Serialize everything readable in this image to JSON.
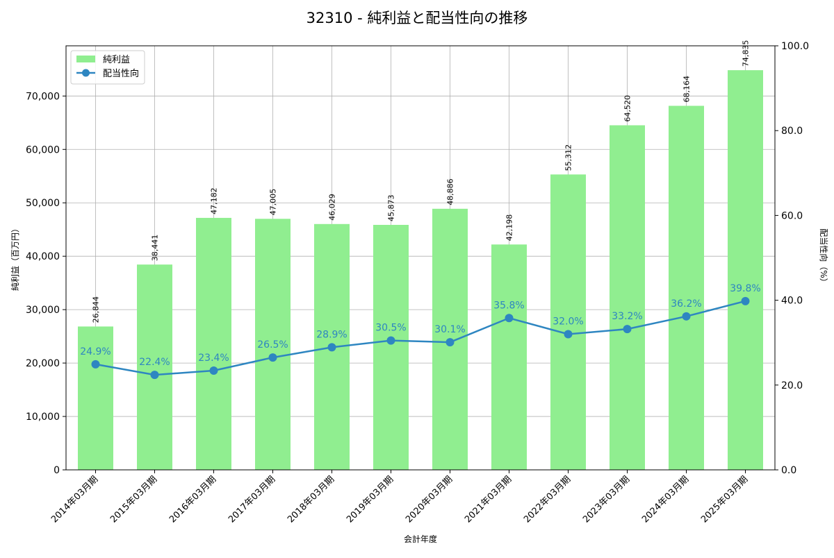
{
  "chart_data": {
    "type": "bar+line",
    "title": "32310 - 純利益と配当性向の推移",
    "xlabel": "会計年度",
    "ylabel_left": "純利益（百万円）",
    "ylabel_right": "配当性向（%）",
    "ylim_left": [
      0,
      79400
    ],
    "ylim_right": [
      0,
      100
    ],
    "yticks_left": [
      0,
      10000,
      20000,
      30000,
      40000,
      50000,
      60000,
      70000
    ],
    "yticks_left_labels": [
      "0",
      "10,000",
      "20,000",
      "30,000",
      "40,000",
      "50,000",
      "60,000",
      "70,000"
    ],
    "yticks_right": [
      0,
      20,
      40,
      60,
      80,
      100
    ],
    "yticks_right_labels": [
      "0.0",
      "20.0",
      "40.0",
      "60.0",
      "80.0",
      "100.0"
    ],
    "grid": true,
    "legend_position": "top-left",
    "categories": [
      "2014年03月期",
      "2015年03月期",
      "2016年03月期",
      "2017年03月期",
      "2018年03月期",
      "2019年03月期",
      "2020年03月期",
      "2021年03月期",
      "2022年03月期",
      "2023年03月期",
      "2024年03月期",
      "2025年03月期"
    ],
    "series": [
      {
        "name": "純利益",
        "type": "bar",
        "axis": "left",
        "color": "#90ee90",
        "values": [
          26844,
          38441,
          47182,
          47005,
          46029,
          45873,
          48886,
          42198,
          55312,
          64520,
          68164,
          74835
        ],
        "labels": [
          "26,844",
          "38,441",
          "47,182",
          "47,005",
          "46,029",
          "45,873",
          "48,886",
          "42,198",
          "55,312",
          "64,520",
          "68,164",
          "74,835"
        ]
      },
      {
        "name": "配当性向",
        "type": "line",
        "axis": "right",
        "color": "#2e86c1",
        "values": [
          24.9,
          22.4,
          23.4,
          26.5,
          28.9,
          30.5,
          30.1,
          35.8,
          32.0,
          33.2,
          36.2,
          39.8
        ],
        "labels": [
          "24.9%",
          "22.4%",
          "23.4%",
          "26.5%",
          "28.9%",
          "30.5%",
          "30.1%",
          "35.8%",
          "32.0%",
          "33.2%",
          "36.2%",
          "39.8%"
        ]
      }
    ]
  }
}
